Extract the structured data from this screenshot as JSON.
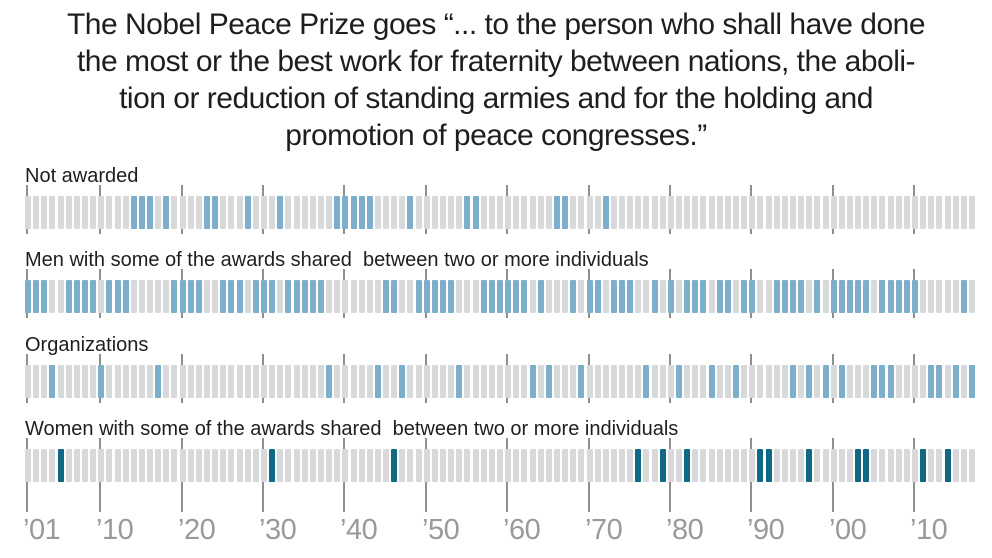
{
  "title": {
    "lines": [
      "The Nobel Peace Prize goes “... to the person who shall have done",
      "the most or the best work for fraternity between nations, the aboli-",
      "tion or reduction of standing armies and for the holding and",
      "promotion of peace congresses.”"
    ]
  },
  "colors": {
    "background": "#ffffff",
    "tick_default": "#d8d9db",
    "highlight_blue": "#7dafcc",
    "highlight_dark_teal": "#0f6884",
    "gridline": "#8f8f8f",
    "axis_label": "#9a9a9a",
    "text": "#1e1e1e"
  },
  "chart_data": {
    "type": "barcode-timeline",
    "year_start": 1901,
    "year_end": 2017,
    "grid": "decade vertical gridlines",
    "axis_ticks": [
      {
        "label": "’01",
        "year": 1901
      },
      {
        "label": "’10",
        "year": 1910
      },
      {
        "label": "’20",
        "year": 1920
      },
      {
        "label": "’30",
        "year": 1930
      },
      {
        "label": "’40",
        "year": 1940
      },
      {
        "label": "’50",
        "year": 1950
      },
      {
        "label": "’60",
        "year": 1960
      },
      {
        "label": "’70",
        "year": 1970
      },
      {
        "label": "’80",
        "year": 1980
      },
      {
        "label": "’90",
        "year": 1990
      },
      {
        "label": "’00",
        "year": 2000
      },
      {
        "label": "’10",
        "year": 2010
      }
    ],
    "rows": [
      {
        "id": "not-awarded",
        "label": "Not awarded",
        "highlight_color": "#7dafcc",
        "years": [
          1914,
          1915,
          1916,
          1918,
          1923,
          1924,
          1928,
          1932,
          1939,
          1940,
          1941,
          1942,
          1943,
          1948,
          1955,
          1956,
          1966,
          1967,
          1972
        ]
      },
      {
        "id": "men",
        "label": "Men with some of the awards shared  between two or more individuals",
        "highlight_color": "#7dafcc",
        "years": [
          1901,
          1902,
          1903,
          1906,
          1907,
          1908,
          1909,
          1911,
          1912,
          1913,
          1919,
          1920,
          1921,
          1922,
          1925,
          1926,
          1927,
          1929,
          1930,
          1931,
          1933,
          1934,
          1935,
          1936,
          1937,
          1945,
          1946,
          1949,
          1950,
          1951,
          1952,
          1953,
          1957,
          1958,
          1959,
          1960,
          1961,
          1962,
          1964,
          1968,
          1970,
          1971,
          1973,
          1974,
          1975,
          1978,
          1980,
          1982,
          1983,
          1984,
          1986,
          1987,
          1989,
          1990,
          1993,
          1994,
          1995,
          1996,
          1998,
          2000,
          2001,
          2002,
          2003,
          2004,
          2006,
          2007,
          2008,
          2009,
          2010,
          2016
        ]
      },
      {
        "id": "organizations",
        "label": "Organizations",
        "highlight_color": "#7dafcc",
        "years": [
          1904,
          1910,
          1917,
          1938,
          1944,
          1947,
          1954,
          1963,
          1965,
          1969,
          1977,
          1981,
          1985,
          1988,
          1995,
          1997,
          1999,
          2001,
          2005,
          2006,
          2007,
          2012,
          2013,
          2015,
          2017
        ]
      },
      {
        "id": "women",
        "label": "Women with some of the awards shared  between two or more individuals",
        "highlight_color": "#0f6884",
        "years": [
          1905,
          1931,
          1946,
          1976,
          1979,
          1982,
          1991,
          1992,
          1997,
          2003,
          2004,
          2011,
          2014
        ]
      }
    ]
  }
}
